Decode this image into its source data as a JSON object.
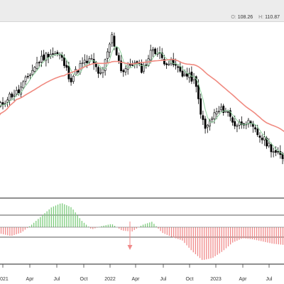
{
  "header": {
    "open_label": "O:",
    "open_value": "108.26",
    "high_label": "H:",
    "high_value": "110.87"
  },
  "colors": {
    "up": "#ffffff",
    "down": "#000000",
    "sma_fast": "#8fd19e",
    "sma_slow": "#f08a80",
    "hist_pos": "#7ccc7c",
    "hist_neg": "#f08a8a",
    "arrow": "#f08a8a"
  },
  "chart_data": [
    {
      "type": "candlestick",
      "title": "",
      "xlabel": "",
      "ylabel": "",
      "x_tick_labels": [
        "2021",
        "Apr",
        "Jul",
        "Oct",
        "2022",
        "Apr",
        "Jul",
        "Oct",
        "2023",
        "Apr",
        "Jul"
      ],
      "monthly_close": [
        98,
        103,
        105,
        112,
        118,
        121,
        120,
        110,
        116,
        118,
        111,
        128,
        113,
        117,
        114,
        123,
        118,
        116,
        112,
        110,
        89,
        96,
        98,
        91,
        93,
        88,
        84,
        79,
        77
      ],
      "series": [
        {
          "name": "",
          "role": "fast moving average"
        },
        {
          "name": "",
          "role": "slow moving average"
        }
      ],
      "grid": false,
      "legend": "none"
    },
    {
      "type": "bar",
      "title": "",
      "description_role": "oscillator histogram",
      "series": [
        {
          "name": "",
          "values": [
            -6,
            -8,
            -5,
            2,
            10,
            18,
            22,
            18,
            6,
            -2,
            1,
            3,
            -3,
            -4,
            2,
            5,
            -5,
            -9,
            -12,
            -22,
            -30,
            -28,
            -22,
            -14,
            -10,
            -11,
            -13,
            -15,
            -16
          ]
        }
      ],
      "reference_lines": [
        1
      ],
      "grid": false,
      "legend": "none"
    }
  ]
}
